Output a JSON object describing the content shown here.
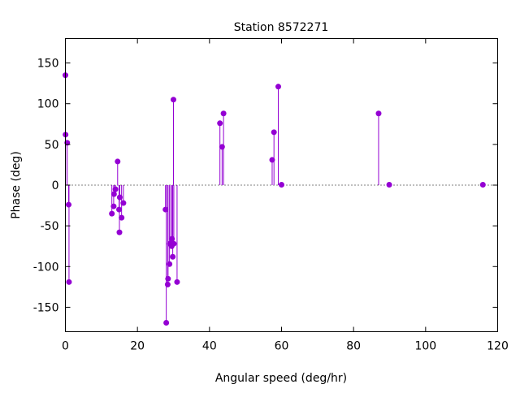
{
  "chart_data": {
    "type": "stem",
    "title": "Station 8572271",
    "xlabel": "Angular speed (deg/hr)",
    "ylabel": "Phase (deg)",
    "xlim": [
      0,
      120
    ],
    "ylim": [
      -180,
      180
    ],
    "xticks": [
      0,
      20,
      40,
      60,
      80,
      100,
      120
    ],
    "yticks": [
      -150,
      -100,
      -50,
      0,
      50,
      100,
      150
    ],
    "grid": false,
    "zero_line": "dotted",
    "color": "#9400d3",
    "x": [
      0.0,
      0.04,
      0.5,
      0.9,
      1.0,
      12.9,
      13.4,
      13.5,
      13.9,
      14.5,
      14.9,
      15.0,
      15.1,
      15.6,
      16.1,
      27.8,
      28.0,
      28.4,
      28.5,
      28.9,
      29.0,
      29.5,
      29.6,
      29.8,
      30.0,
      30.1,
      31.0,
      42.9,
      43.5,
      43.9,
      57.4,
      57.9,
      59.1,
      60.0,
      86.95,
      89.9,
      115.9
    ],
    "values": [
      135,
      62,
      52,
      -24,
      -119,
      -35,
      -26,
      -11,
      -5,
      29,
      -30,
      -58,
      -15,
      -40,
      -22,
      -30,
      -169,
      -122,
      -115,
      -97,
      -72,
      -75,
      -66,
      -88,
      105,
      -72,
      -119,
      76,
      47,
      88,
      31,
      65,
      121,
      0.5,
      88,
      0.5,
      0.5
    ]
  }
}
